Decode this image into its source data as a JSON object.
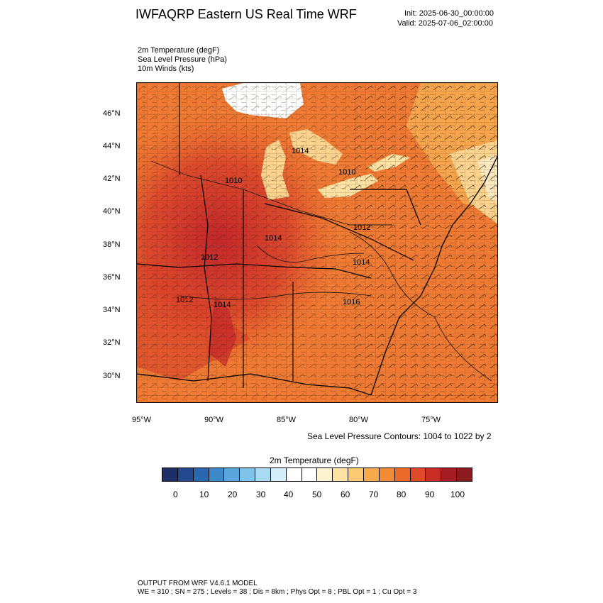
{
  "title": "IWFAQRP Eastern US Real Time WRF",
  "init": "Init: 2025-06-30_00:00:00",
  "valid": "Valid: 2025-07-06_02:00:00",
  "fields": [
    "2m Temperature   (degF)",
    "Sea Level Pressure   (hPa)",
    "10m Winds   (kts)"
  ],
  "map": {
    "lat_labels": [
      "46°N",
      "44°N",
      "42°N",
      "40°N",
      "38°N",
      "36°N",
      "34°N",
      "32°N",
      "30°N"
    ],
    "lon_labels": [
      "95°W",
      "90°W",
      "85°W",
      "80°W",
      "75°W"
    ],
    "pressure_labels": [
      "1010",
      "1014",
      "1010",
      "1012",
      "1014",
      "1012",
      "1014",
      "1012",
      "1014",
      "1016"
    ],
    "colors": {
      "hot": "#c4262a",
      "warm": "#e2502c",
      "mid": "#ee7a33",
      "mild": "#f6a54c",
      "cool": "#fbd38e",
      "lake": "#ffffff"
    }
  },
  "contour_note": "Sea Level Pressure Contours: 1004 to 1022 by 2",
  "colorbar": {
    "title": "2m Temperature  (degF)",
    "colors": [
      "#1d2f66",
      "#24488f",
      "#2b66b0",
      "#3e88c9",
      "#5aa6dc",
      "#80c3ea",
      "#a9dcf4",
      "#d6eefa",
      "#ffffff",
      "#ffffff",
      "#fff2cf",
      "#fde3a3",
      "#fbc874",
      "#f7a94c",
      "#f28a36",
      "#eb6a2b",
      "#e04a28",
      "#c92d25",
      "#a51c22",
      "#8a1a1e"
    ],
    "labels": [
      "0",
      "10",
      "20",
      "30",
      "40",
      "50",
      "60",
      "70",
      "80",
      "90",
      "100"
    ]
  },
  "footer": {
    "line1": "OUTPUT FROM WRF V4.6.1 MODEL",
    "line2": "WE = 310 ; SN = 275 ; Levels = 38 ; Dis = 8km ; Phys Opt = 8 ; PBL Opt = 1 ; Cu Opt = 3"
  }
}
